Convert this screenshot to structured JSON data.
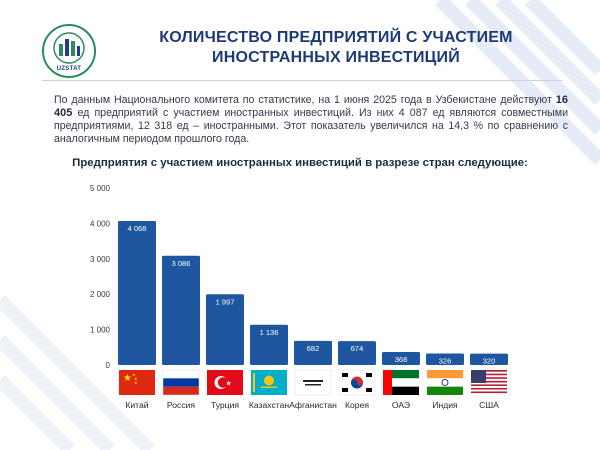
{
  "logo": {
    "text": "UZSTAT"
  },
  "header": {
    "title_line1": "КОЛИЧЕСТВО ПРЕДПРИЯТИЙ С УЧАСТИЕМ",
    "title_line2": "ИНОСТРАННЫХ ИНВЕСТИЦИЙ"
  },
  "paragraph": {
    "part1": "По данным Национального комитета по статистике, на 1 июня 2025 года в Узбекистане действуют ",
    "total": "16 405",
    "part2": " ед предприятий с участием иностранных инвестиций. Из них 4 087 ед являются совместными предприятиями, 12 318 ед – иностранными. Этот показатель увеличился на 14,3 % по сравнению с аналогичным периодом прошлого года."
  },
  "subtitle": "Предприятия с участием иностранных инвестиций в разрезе стран следующие:",
  "colors": {
    "bar": "#1e56a0",
    "title": "#1d3a78",
    "logo_ring": "#2a8c5c"
  },
  "chart_data": {
    "type": "bar",
    "categories": [
      "Китай",
      "Россия",
      "Турция",
      "Казахстан",
      "Афганистан",
      "Корея",
      "ОАЭ",
      "Индия",
      "США"
    ],
    "values": [
      4068,
      3086,
      1997,
      1136,
      682,
      674,
      368,
      326,
      320
    ],
    "value_labels": [
      "4 068",
      "3 086",
      "1 997",
      "1 136",
      "682",
      "674",
      "368",
      "326",
      "320"
    ],
    "flags": [
      "china-flag",
      "russia-flag",
      "turkey-flag",
      "kazakhstan-flag",
      "afghanistan-flag",
      "korea-flag",
      "uae-flag",
      "india-flag",
      "usa-flag"
    ],
    "ylim": [
      0,
      5000
    ],
    "yticks": [
      0,
      1000,
      2000,
      3000,
      4000,
      5000
    ],
    "ytick_labels": [
      "0",
      "1 000",
      "2 000",
      "3 000",
      "4 000",
      "5 000"
    ],
    "grid": false
  }
}
